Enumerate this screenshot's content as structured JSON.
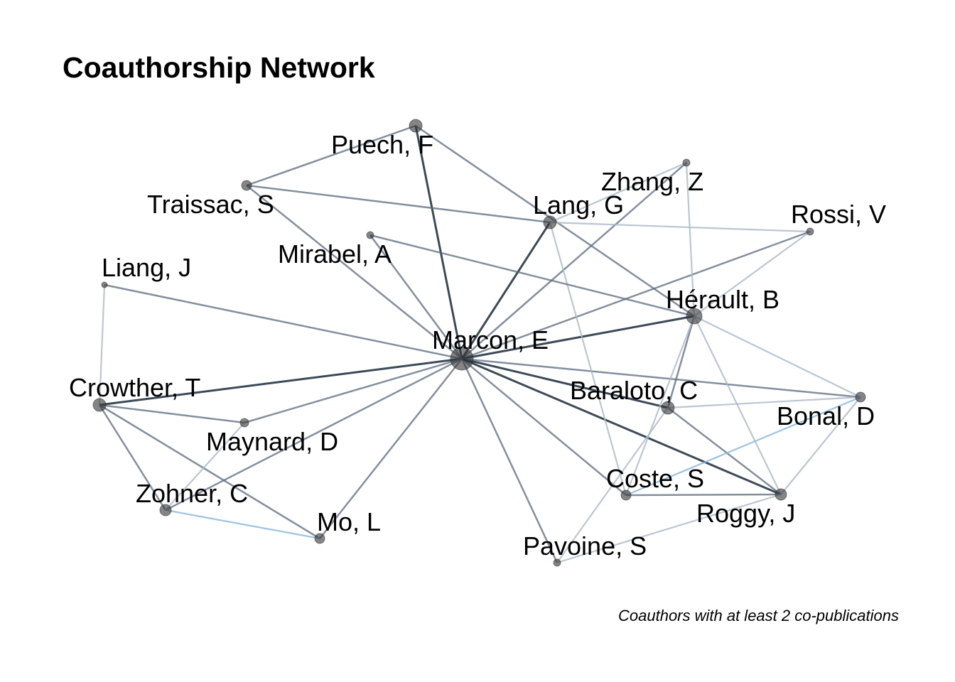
{
  "title": "Coauthorship Network",
  "caption": "Coauthors with at least 2 co-publications",
  "colors": {
    "edge_strong": "#1a2a3a",
    "edge_mid": "#5a6a7c",
    "edge_weak": "#aab8c8",
    "edge_blue": "#8cb8e0",
    "node": "#333333"
  },
  "nodes": [
    {
      "id": "marcon",
      "label": "Marcon, E"
    },
    {
      "id": "puech",
      "label": "Puech, F"
    },
    {
      "id": "traissac",
      "label": "Traissac, S"
    },
    {
      "id": "zhang",
      "label": "Zhang, Z"
    },
    {
      "id": "lang",
      "label": "Lang, G"
    },
    {
      "id": "rossi",
      "label": "Rossi, V"
    },
    {
      "id": "mirabel",
      "label": "Mirabel, A"
    },
    {
      "id": "liang",
      "label": "Liang, J"
    },
    {
      "id": "herault",
      "label": "Hérault, B"
    },
    {
      "id": "crowther",
      "label": "Crowther, T"
    },
    {
      "id": "baraloto",
      "label": "Baraloto, C"
    },
    {
      "id": "bonal",
      "label": "Bonal, D"
    },
    {
      "id": "maynard",
      "label": "Maynard, D"
    },
    {
      "id": "zohner",
      "label": "Zohner, C"
    },
    {
      "id": "coste",
      "label": "Coste, S"
    },
    {
      "id": "roggy",
      "label": "Roggy, J"
    },
    {
      "id": "mo",
      "label": "Mo, L"
    },
    {
      "id": "pavoine",
      "label": "Pavoine, S"
    }
  ],
  "edges": [
    {
      "source": "marcon",
      "target": "puech",
      "strength": "strong"
    },
    {
      "source": "marcon",
      "target": "traissac",
      "strength": "mid"
    },
    {
      "source": "marcon",
      "target": "zhang",
      "strength": "mid"
    },
    {
      "source": "marcon",
      "target": "lang",
      "strength": "strong"
    },
    {
      "source": "marcon",
      "target": "rossi",
      "strength": "mid"
    },
    {
      "source": "marcon",
      "target": "mirabel",
      "strength": "mid"
    },
    {
      "source": "marcon",
      "target": "liang",
      "strength": "mid"
    },
    {
      "source": "marcon",
      "target": "herault",
      "strength": "strong"
    },
    {
      "source": "marcon",
      "target": "crowther",
      "strength": "strong"
    },
    {
      "source": "marcon",
      "target": "baraloto",
      "strength": "strong"
    },
    {
      "source": "marcon",
      "target": "bonal",
      "strength": "mid"
    },
    {
      "source": "marcon",
      "target": "maynard",
      "strength": "mid"
    },
    {
      "source": "marcon",
      "target": "zohner",
      "strength": "mid"
    },
    {
      "source": "marcon",
      "target": "coste",
      "strength": "mid"
    },
    {
      "source": "marcon",
      "target": "roggy",
      "strength": "strong"
    },
    {
      "source": "marcon",
      "target": "mo",
      "strength": "mid"
    },
    {
      "source": "marcon",
      "target": "pavoine",
      "strength": "mid"
    },
    {
      "source": "puech",
      "target": "traissac",
      "strength": "mid"
    },
    {
      "source": "puech",
      "target": "herault",
      "strength": "mid"
    },
    {
      "source": "traissac",
      "target": "lang",
      "strength": "mid"
    },
    {
      "source": "zhang",
      "target": "lang",
      "strength": "weak"
    },
    {
      "source": "zhang",
      "target": "herault",
      "strength": "weak"
    },
    {
      "source": "lang",
      "target": "rossi",
      "strength": "weak"
    },
    {
      "source": "lang",
      "target": "coste",
      "strength": "weak"
    },
    {
      "source": "mirabel",
      "target": "herault",
      "strength": "mid"
    },
    {
      "source": "rossi",
      "target": "herault",
      "strength": "weak"
    },
    {
      "source": "liang",
      "target": "crowther",
      "strength": "weak"
    },
    {
      "source": "herault",
      "target": "baraloto",
      "strength": "mid"
    },
    {
      "source": "herault",
      "target": "bonal",
      "strength": "weak"
    },
    {
      "source": "herault",
      "target": "coste",
      "strength": "weak"
    },
    {
      "source": "herault",
      "target": "roggy",
      "strength": "weak"
    },
    {
      "source": "baraloto",
      "target": "bonal",
      "strength": "weak"
    },
    {
      "source": "baraloto",
      "target": "roggy",
      "strength": "mid"
    },
    {
      "source": "baraloto",
      "target": "pavoine",
      "strength": "weak"
    },
    {
      "source": "coste",
      "target": "bonal",
      "strength": "blue"
    },
    {
      "source": "coste",
      "target": "roggy",
      "strength": "mid"
    },
    {
      "source": "roggy",
      "target": "bonal",
      "strength": "weak"
    },
    {
      "source": "roggy",
      "target": "pavoine",
      "strength": "weak"
    },
    {
      "source": "crowther",
      "target": "maynard",
      "strength": "mid"
    },
    {
      "source": "crowther",
      "target": "zohner",
      "strength": "mid"
    },
    {
      "source": "crowther",
      "target": "mo",
      "strength": "mid"
    },
    {
      "source": "maynard",
      "target": "zohner",
      "strength": "weak"
    },
    {
      "source": "zohner",
      "target": "mo",
      "strength": "blue"
    }
  ]
}
